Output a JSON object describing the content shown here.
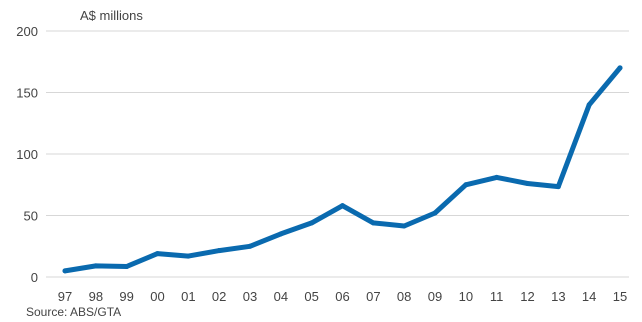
{
  "chart_data": {
    "type": "line",
    "unit_label": "A$ millions",
    "source": "Source: ABS/GTA",
    "x_tick_labels": [
      "97",
      "98",
      "99",
      "00",
      "01",
      "02",
      "03",
      "04",
      "05",
      "06",
      "07",
      "08",
      "09",
      "10",
      "11",
      "12",
      "13",
      "14",
      "15"
    ],
    "y_tick_labels": [
      "0",
      "50",
      "100",
      "150",
      "200"
    ],
    "y_ticks": [
      0,
      50,
      100,
      150,
      200
    ],
    "ylim": [
      0,
      200
    ],
    "grid": "horizontal",
    "legend": "none",
    "series": [
      {
        "values": [
          5,
          9,
          8.5,
          19,
          17,
          21.5,
          25,
          35,
          44,
          58,
          44,
          41.5,
          52,
          75,
          81,
          76,
          73.5,
          140,
          170
        ],
        "color": "#0a6aaf"
      }
    ],
    "colors": {
      "gridline": "#d7d7d7",
      "text": "#444444"
    }
  }
}
